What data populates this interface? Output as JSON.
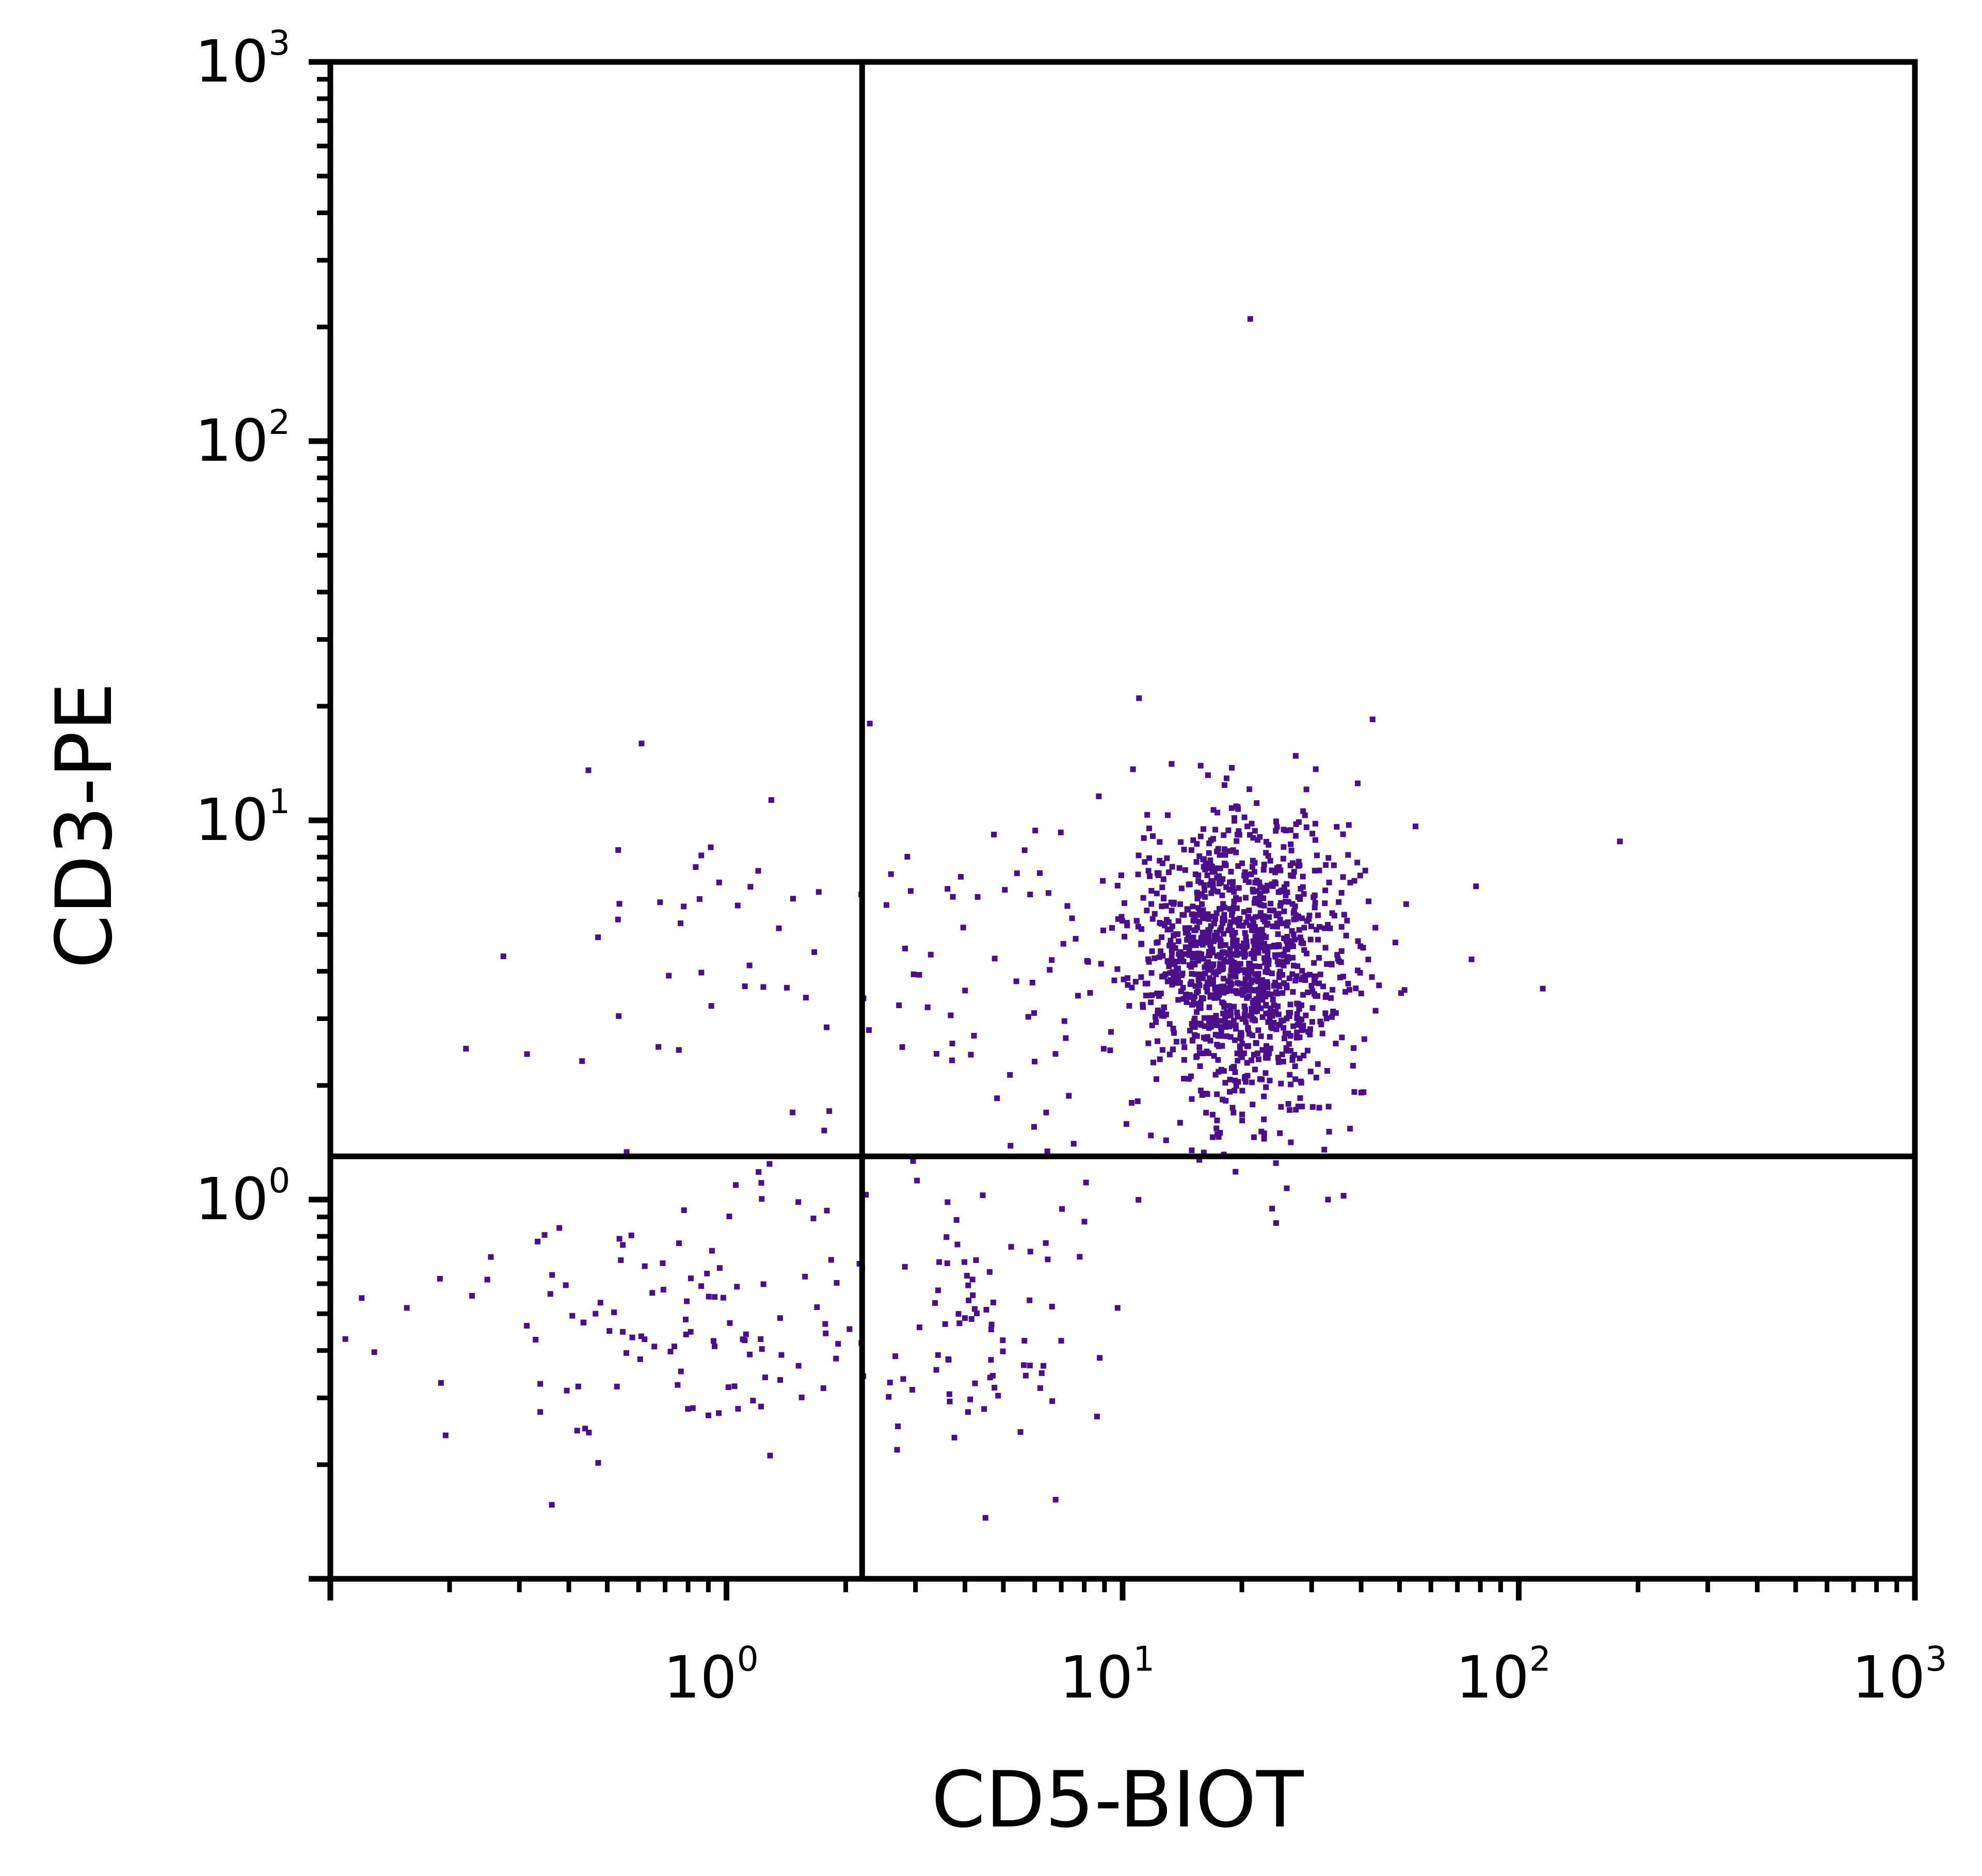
{
  "chart_data": {
    "type": "scatter",
    "title": "",
    "xlabel": "CD5-BIOT",
    "ylabel": "CD3-PE",
    "x_scale": "log",
    "y_scale": "log",
    "xlim": [
      0.1,
      1000
    ],
    "ylim": [
      0.1,
      1000
    ],
    "grid": false,
    "x_ticks": [
      {
        "base": "10",
        "exp": "0",
        "value": 1
      },
      {
        "base": "10",
        "exp": "1",
        "value": 10
      },
      {
        "base": "10",
        "exp": "2",
        "value": 100
      },
      {
        "base": "10",
        "exp": "3",
        "value": 1000
      }
    ],
    "y_ticks": [
      {
        "base": "10",
        "exp": "0",
        "value": 1
      },
      {
        "base": "10",
        "exp": "1",
        "value": 10
      },
      {
        "base": "10",
        "exp": "2",
        "value": 100
      },
      {
        "base": "10",
        "exp": "3",
        "value": 1000
      }
    ],
    "quadrant_gates": {
      "x": 2.2,
      "y": 1.3
    },
    "point_color": "#4b0f8a",
    "clusters": [
      {
        "name": "",
        "center_x": 20,
        "center_y": 4.2,
        "spread_log_x": 0.14,
        "spread_log_y": 0.19,
        "count": 1300
      },
      {
        "name": "",
        "center_x": 0.9,
        "center_y": 0.5,
        "spread_log_x": 0.3,
        "spread_log_y": 0.18,
        "count": 130
      },
      {
        "name": "",
        "center_x": 4.5,
        "center_y": 0.45,
        "spread_log_x": 0.16,
        "spread_log_y": 0.18,
        "count": 70
      },
      {
        "name": "",
        "center_x": 1.2,
        "center_y": 5,
        "spread_log_x": 0.3,
        "spread_log_y": 0.25,
        "count": 45
      },
      {
        "name": "",
        "center_x": 5,
        "center_y": 3.5,
        "spread_log_x": 0.25,
        "spread_log_y": 0.25,
        "count": 60
      }
    ],
    "outliers": [
      {
        "x": 21,
        "y": 210
      },
      {
        "x": 11,
        "y": 21
      },
      {
        "x": 180,
        "y": 8.8
      },
      {
        "x": 115,
        "y": 3.6
      },
      {
        "x": 78,
        "y": 6.7
      },
      {
        "x": 76,
        "y": 4.3
      },
      {
        "x": 0.12,
        "y": 0.55
      },
      {
        "x": 0.22,
        "y": 2.5
      },
      {
        "x": 2.3,
        "y": 18
      },
      {
        "x": 33,
        "y": 1
      }
    ]
  }
}
